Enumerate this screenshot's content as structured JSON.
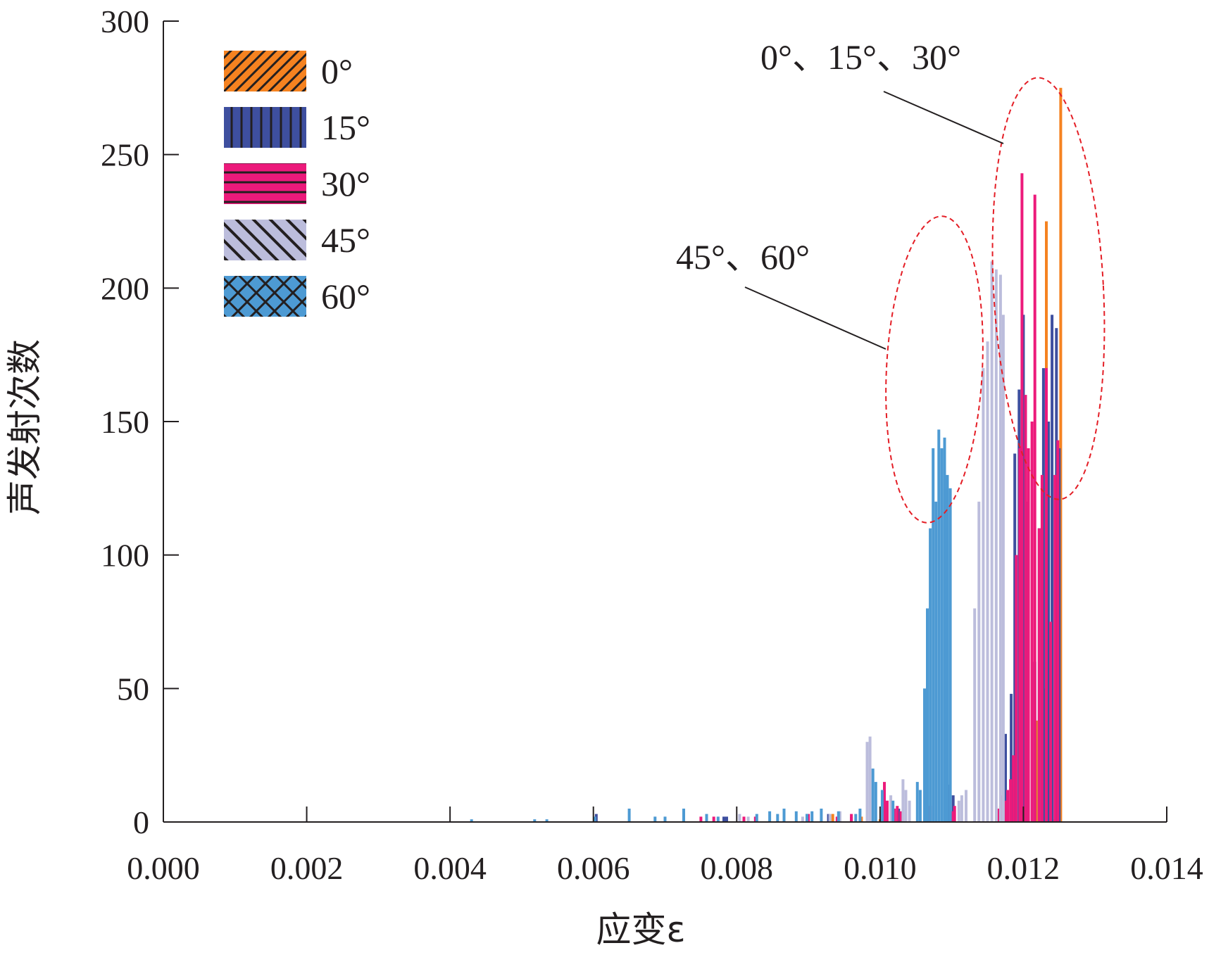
{
  "chart_data": {
    "type": "bar",
    "xlabel": "应变ε",
    "ylabel": "声发射次数",
    "xlim": [
      0.0,
      0.014
    ],
    "ylim": [
      0,
      300
    ],
    "x_ticks": [
      "0.000",
      "0.002",
      "0.004",
      "0.006",
      "0.008",
      "0.010",
      "0.012",
      "0.014"
    ],
    "y_ticks": [
      "0",
      "50",
      "100",
      "150",
      "200",
      "250",
      "300"
    ],
    "grid": false,
    "legend_position": "top-left",
    "series": [
      {
        "name": "0°",
        "color": "#f58220",
        "pattern": "diagonal-hatch",
        "points": [
          [
            0.00934,
            3
          ],
          [
            0.00974,
            2
          ],
          [
            0.01,
            1
          ],
          [
            0.01025,
            4
          ],
          [
            0.01168,
            6
          ],
          [
            0.01218,
            38
          ],
          [
            0.01228,
            50
          ],
          [
            0.01232,
            225
          ],
          [
            0.01244,
            1
          ],
          [
            0.01248,
            80
          ],
          [
            0.01252,
            275
          ]
        ]
      },
      {
        "name": "15°",
        "color": "#3e4f9f",
        "pattern": "vertical-lines",
        "points": [
          [
            0.00604,
            3
          ],
          [
            0.00782,
            2
          ],
          [
            0.00786,
            2
          ],
          [
            0.00898,
            3
          ],
          [
            0.00928,
            3
          ],
          [
            0.0096,
            2
          ],
          [
            0.01026,
            5
          ],
          [
            0.01093,
            18
          ],
          [
            0.01097,
            14
          ],
          [
            0.01102,
            10
          ],
          [
            0.01175,
            33
          ],
          [
            0.01183,
            48
          ],
          [
            0.01188,
            138
          ],
          [
            0.01194,
            162
          ],
          [
            0.012,
            190
          ],
          [
            0.01206,
            120
          ],
          [
            0.01216,
            60
          ],
          [
            0.01222,
            110
          ],
          [
            0.01228,
            170
          ],
          [
            0.01235,
            150
          ],
          [
            0.0124,
            190
          ],
          [
            0.01246,
            185
          ],
          [
            0.0125,
            140
          ]
        ]
      },
      {
        "name": "30°",
        "color": "#ec1a7b",
        "pattern": "horizontal-lines",
        "points": [
          [
            0.0075,
            2
          ],
          [
            0.00768,
            2
          ],
          [
            0.0081,
            2
          ],
          [
            0.00826,
            2
          ],
          [
            0.009,
            3
          ],
          [
            0.0094,
            2
          ],
          [
            0.0096,
            3
          ],
          [
            0.01006,
            15
          ],
          [
            0.0101,
            8
          ],
          [
            0.0102,
            5
          ],
          [
            0.01024,
            6
          ],
          [
            0.01029,
            4
          ],
          [
            0.01064,
            8
          ],
          [
            0.0107,
            6
          ],
          [
            0.01101,
            4
          ],
          [
            0.01104,
            6
          ],
          [
            0.01166,
            5
          ],
          [
            0.0117,
            10
          ],
          [
            0.01174,
            8
          ],
          [
            0.01178,
            12
          ],
          [
            0.01182,
            16
          ],
          [
            0.01186,
            25
          ],
          [
            0.0119,
            100
          ],
          [
            0.01195,
            140
          ],
          [
            0.01198,
            243
          ],
          [
            0.01203,
            160
          ],
          [
            0.01207,
            140
          ],
          [
            0.01212,
            150
          ],
          [
            0.01216,
            235
          ],
          [
            0.01222,
            110
          ],
          [
            0.01226,
            130
          ],
          [
            0.01232,
            170
          ],
          [
            0.01238,
            75
          ],
          [
            0.01244,
            130
          ],
          [
            0.01248,
            143
          ]
        ]
      },
      {
        "name": "45°",
        "color": "#bcbddc",
        "pattern": "diagonal-hatch-reverse",
        "points": [
          [
            0.00804,
            3
          ],
          [
            0.00816,
            2
          ],
          [
            0.00892,
            2
          ],
          [
            0.0093,
            3
          ],
          [
            0.00944,
            4
          ],
          [
            0.00982,
            30
          ],
          [
            0.00986,
            32
          ],
          [
            0.01015,
            10
          ],
          [
            0.01032,
            16
          ],
          [
            0.01036,
            12
          ],
          [
            0.01041,
            8
          ],
          [
            0.0111,
            8
          ],
          [
            0.01114,
            10
          ],
          [
            0.0112,
            12
          ],
          [
            0.01132,
            80
          ],
          [
            0.01138,
            120
          ],
          [
            0.01144,
            170
          ],
          [
            0.0115,
            180
          ],
          [
            0.01156,
            210
          ],
          [
            0.01162,
            207
          ],
          [
            0.01168,
            205
          ],
          [
            0.01172,
            190
          ]
        ]
      },
      {
        "name": "60°",
        "color": "#4d9ad3",
        "pattern": "crosshatch",
        "points": [
          [
            0.0043,
            1
          ],
          [
            0.00518,
            1
          ],
          [
            0.00535,
            1
          ],
          [
            0.00602,
            2
          ],
          [
            0.0065,
            5
          ],
          [
            0.00686,
            2
          ],
          [
            0.007,
            2
          ],
          [
            0.00726,
            5
          ],
          [
            0.00758,
            3
          ],
          [
            0.00774,
            2
          ],
          [
            0.00828,
            3
          ],
          [
            0.00846,
            4
          ],
          [
            0.00857,
            3
          ],
          [
            0.00866,
            5
          ],
          [
            0.00883,
            4
          ],
          [
            0.00898,
            3
          ],
          [
            0.00905,
            4
          ],
          [
            0.00918,
            5
          ],
          [
            0.00942,
            4
          ],
          [
            0.00966,
            3
          ],
          [
            0.00972,
            5
          ],
          [
            0.0099,
            20
          ],
          [
            0.00994,
            15
          ],
          [
            0.01003,
            12
          ],
          [
            0.01018,
            8
          ],
          [
            0.01052,
            15
          ],
          [
            0.01056,
            12
          ],
          [
            0.01062,
            50
          ],
          [
            0.01066,
            80
          ],
          [
            0.0107,
            110
          ],
          [
            0.01074,
            140
          ],
          [
            0.01078,
            120
          ],
          [
            0.01082,
            147
          ],
          [
            0.01086,
            140
          ],
          [
            0.0109,
            144
          ],
          [
            0.01094,
            130
          ],
          [
            0.01098,
            125
          ]
        ]
      }
    ],
    "annotations": [
      {
        "text": "0°、15°、30°"
      },
      {
        "text": "45°、60°"
      }
    ]
  }
}
